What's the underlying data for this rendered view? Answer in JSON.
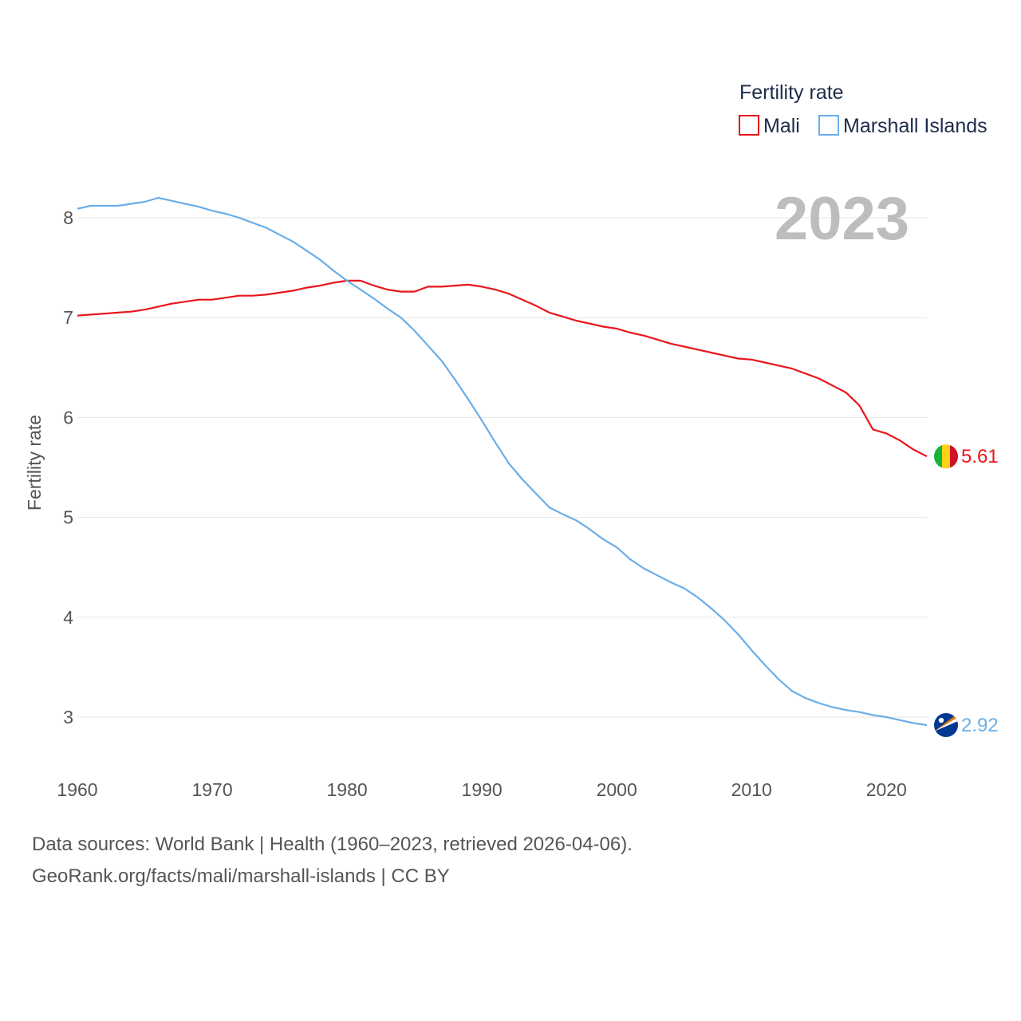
{
  "chart_data": {
    "type": "line",
    "xlabel": "",
    "ylabel": "Fertility rate",
    "xlim": [
      1960,
      2023
    ],
    "ylim": [
      2.5,
      8.4
    ],
    "x_ticks": [
      1960,
      1970,
      1980,
      1990,
      2000,
      2010,
      2020
    ],
    "y_ticks": [
      3,
      4,
      5,
      6,
      7,
      8
    ],
    "grid": "horizontal",
    "legend": {
      "title": "Fertility rate",
      "placement": "top-right",
      "items": [
        "Mali",
        "Marshall Islands"
      ]
    },
    "year_label": "2023",
    "x": [
      1960,
      1961,
      1962,
      1963,
      1964,
      1965,
      1966,
      1967,
      1968,
      1969,
      1970,
      1971,
      1972,
      1973,
      1974,
      1975,
      1976,
      1977,
      1978,
      1979,
      1980,
      1981,
      1982,
      1983,
      1984,
      1985,
      1986,
      1987,
      1988,
      1989,
      1990,
      1991,
      1992,
      1993,
      1994,
      1995,
      1996,
      1997,
      1998,
      1999,
      2000,
      2001,
      2002,
      2003,
      2004,
      2005,
      2006,
      2007,
      2008,
      2009,
      2010,
      2011,
      2012,
      2013,
      2014,
      2015,
      2016,
      2017,
      2018,
      2019,
      2020,
      2021,
      2022,
      2023
    ],
    "series": [
      {
        "name": "Mali",
        "color": "#e8161b",
        "end_label": "5.61",
        "values": [
          7.02,
          7.03,
          7.04,
          7.05,
          7.06,
          7.08,
          7.11,
          7.14,
          7.16,
          7.18,
          7.18,
          7.2,
          7.22,
          7.22,
          7.23,
          7.25,
          7.27,
          7.3,
          7.32,
          7.35,
          7.37,
          7.37,
          7.32,
          7.28,
          7.26,
          7.26,
          7.31,
          7.31,
          7.32,
          7.33,
          7.31,
          7.28,
          7.24,
          7.18,
          7.12,
          7.05,
          7.01,
          6.97,
          6.94,
          6.91,
          6.89,
          6.85,
          6.82,
          6.78,
          6.74,
          6.71,
          6.68,
          6.65,
          6.62,
          6.59,
          6.58,
          6.55,
          6.52,
          6.49,
          6.44,
          6.39,
          6.32,
          6.25,
          6.12,
          5.88,
          5.84,
          5.77,
          5.68,
          5.61
        ]
      },
      {
        "name": "Marshall Islands",
        "color": "#6aaee8",
        "end_label": "2.92",
        "values": [
          8.09,
          8.12,
          8.12,
          8.12,
          8.14,
          8.16,
          8.2,
          8.17,
          8.14,
          8.11,
          8.07,
          8.04,
          8.0,
          7.95,
          7.9,
          7.83,
          7.76,
          7.67,
          7.58,
          7.47,
          7.37,
          7.28,
          7.19,
          7.09,
          7.0,
          6.87,
          6.72,
          6.57,
          6.38,
          6.18,
          5.97,
          5.75,
          5.54,
          5.38,
          5.24,
          5.1,
          5.03,
          4.97,
          4.88,
          4.78,
          4.7,
          4.58,
          4.49,
          4.42,
          4.35,
          4.29,
          4.2,
          4.09,
          3.97,
          3.83,
          3.67,
          3.52,
          3.38,
          3.26,
          3.19,
          3.14,
          3.1,
          3.07,
          3.05,
          3.02,
          3.0,
          2.97,
          2.94,
          2.92
        ]
      }
    ]
  },
  "footer": {
    "line1": "Data sources: World Bank | Health (1960–2023, retrieved 2026-04-06).",
    "line2": "GeoRank.org/facts/mali/marshall-islands | CC BY"
  }
}
